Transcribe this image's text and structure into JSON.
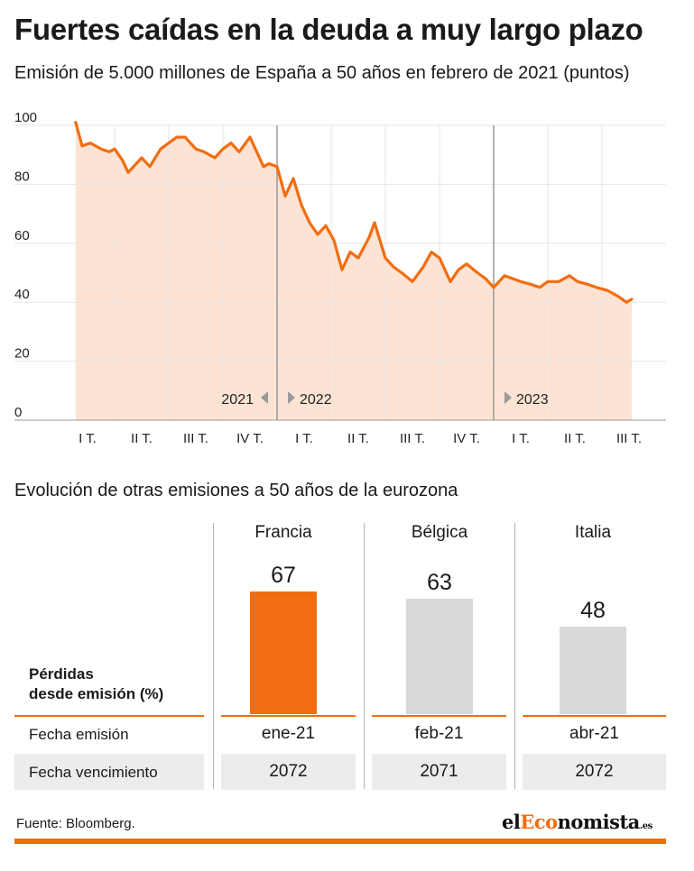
{
  "header": {
    "title": "Fuertes caídas en la deuda a muy largo plazo",
    "subtitle": "Emisión de 5.000 millones de España a 50 años en febrero de 2021 (puntos)"
  },
  "chart_data": [
    {
      "type": "line",
      "title": "Fuertes caídas en la deuda a muy largo plazo",
      "subtitle": "Emisión de 5.000 millones de España a 50 años en febrero de 2021 (puntos)",
      "ylim": [
        0,
        100
      ],
      "yticks": [
        0,
        20,
        40,
        60,
        80,
        100
      ],
      "xlim": [
        0,
        10.55
      ],
      "quarter_labels": [
        "I T.",
        "II T.",
        "III T.",
        "IV T.",
        "I T.",
        "II T.",
        "III T.",
        "IV T.",
        "I T.",
        "II T.",
        "III T."
      ],
      "year_markers": [
        {
          "label": "2021",
          "x": 0,
          "arrow": "left"
        },
        {
          "label": "2022",
          "x": 4,
          "arrow": "right"
        },
        {
          "label": "2023",
          "x": 8,
          "arrow": "right"
        }
      ],
      "grid": true,
      "area_fill": true,
      "line_color": "#f26d11",
      "fill_color": "#fde3d3",
      "x": [
        0.28,
        0.4,
        0.55,
        0.75,
        0.9,
        1.0,
        1.15,
        1.25,
        1.4,
        1.5,
        1.65,
        1.85,
        2.0,
        2.15,
        2.3,
        2.5,
        2.65,
        2.85,
        3.0,
        3.15,
        3.3,
        3.5,
        3.6,
        3.75,
        3.85,
        4.0,
        4.15,
        4.3,
        4.45,
        4.6,
        4.75,
        4.9,
        5.05,
        5.2,
        5.35,
        5.5,
        5.7,
        5.8,
        6.0,
        6.15,
        6.3,
        6.5,
        6.7,
        6.85,
        7.0,
        7.2,
        7.35,
        7.5,
        7.7,
        7.85,
        8.0,
        8.2,
        8.35,
        8.5,
        8.7,
        8.85,
        9.0,
        9.2,
        9.4,
        9.55,
        9.75,
        9.9,
        10.1,
        10.3,
        10.45,
        10.55
      ],
      "y": [
        101,
        93,
        94,
        92,
        91,
        92,
        88,
        84,
        87,
        89,
        86,
        92,
        94,
        96,
        96,
        92,
        91,
        89,
        92,
        94,
        91,
        96,
        92,
        86,
        87,
        86,
        76,
        82,
        73,
        67,
        63,
        66,
        61,
        51,
        57,
        55,
        62,
        67,
        55,
        52,
        50,
        47,
        52,
        57,
        55,
        47,
        51,
        53,
        50,
        48,
        45,
        49,
        48,
        47,
        46,
        45,
        47,
        47,
        49,
        47,
        46,
        45,
        44,
        42,
        40,
        41
      ]
    },
    {
      "type": "bar",
      "title": "Evolución de otras emisiones a 50 años de la eurozona",
      "categories": [
        "Francia",
        "Bélgica",
        "Italia"
      ],
      "values": [
        67,
        63,
        48
      ],
      "colors": [
        "#f26d11",
        "#d9d9d9",
        "#d9d9d9"
      ],
      "ylabel": "Pérdidas desde emisión (%)",
      "ylim": [
        0,
        67
      ]
    }
  ],
  "y_tick_labels": [
    "100",
    "80",
    "60",
    "40",
    "20",
    "0"
  ],
  "euro": {
    "heading": "Evolución de otras emisiones a 50 años de la eurozona",
    "label_losses_line1": "Pérdidas",
    "label_losses_line2": "desde emisión (%)",
    "label_issue": "Fecha emisión",
    "label_maturity": "Fecha vencimiento",
    "countries": [
      {
        "name": "Francia",
        "value": "67",
        "issue": "ene-21",
        "maturity": "2072"
      },
      {
        "name": "Bélgica",
        "value": "63",
        "issue": "feb-21",
        "maturity": "2071"
      },
      {
        "name": "Italia",
        "value": "48",
        "issue": "abr-21",
        "maturity": "2072"
      }
    ]
  },
  "footer": {
    "source": "Fuente: Bloomberg.",
    "brand_prefix": "el",
    "brand_accent": "Eco",
    "brand_suffix": "nomista",
    "brand_tld": ".es"
  }
}
